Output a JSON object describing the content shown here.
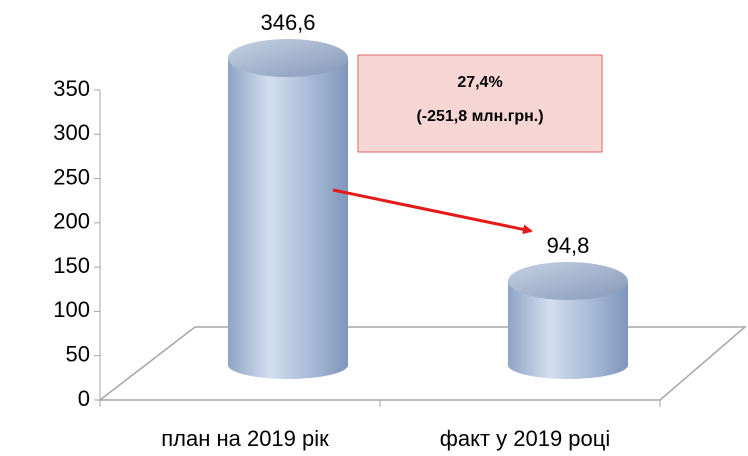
{
  "chart_data": {
    "type": "bar",
    "categories": [
      "план на 2019 рік",
      "факт у 2019 році"
    ],
    "values": [
      346.6,
      94.8
    ],
    "value_labels": [
      "346,6",
      "94,8"
    ],
    "color": "#a9bcd9",
    "ylim": [
      0,
      350
    ],
    "yticks": [
      0,
      50,
      100,
      150,
      200,
      250,
      300,
      350
    ],
    "annotations": [
      "27,4%",
      "(-251,8 млн.грн.)"
    ]
  }
}
